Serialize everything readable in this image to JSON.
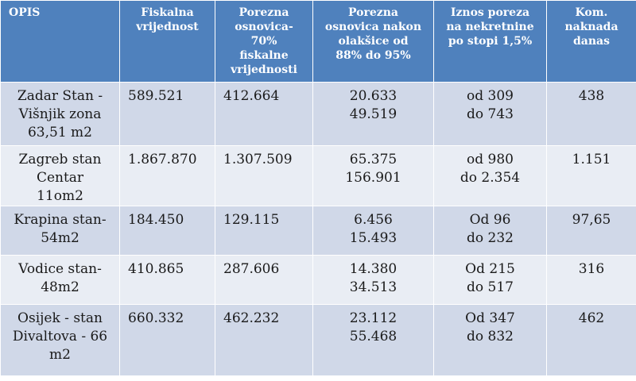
{
  "table": {
    "headers": [
      "OPIS",
      "Fiskalna vrijednost",
      "Porezna osnovica-70% fiskalne vrijednosti",
      "Porezna osnovica nakon olakšice od 88% do 95%",
      "Iznos poreza na nekretnine po stopi 1,5%",
      "Kom. naknada danas"
    ],
    "header_lines": [
      [
        "OPIS"
      ],
      [
        "Fiskalna",
        "vrijednost"
      ],
      [
        "Porezna",
        "osnovica-",
        "70%",
        "fiskalne",
        "vrijednosti"
      ],
      [
        "Porezna",
        "osnovica nakon",
        "olakšice od",
        "88% do 95%"
      ],
      [
        "Iznos  poreza",
        "na nekretnine",
        "po stopi 1,5%"
      ],
      [
        "Kom.",
        "naknada",
        "danas"
      ]
    ],
    "rows": [
      {
        "opis": [
          "Zadar Stan  -",
          "Višnjik  zona",
          "63,51 m2"
        ],
        "fiskalna": "589.521",
        "osnovica70": "412.664",
        "osnovica_olaksica": [
          "20.633",
          "49.519"
        ],
        "porez": [
          "od 309",
          "do 743"
        ],
        "naknada": "438"
      },
      {
        "opis": [
          "Zagreb stan",
          "Centar",
          "11om2"
        ],
        "fiskalna": "1.867.870",
        "osnovica70": "1.307.509",
        "osnovica_olaksica": [
          "65.375",
          "156.901"
        ],
        "porez": [
          "od 980",
          "do 2.354"
        ],
        "naknada": "1.151"
      },
      {
        "opis": [
          "Krapina stan-",
          "54m2"
        ],
        "fiskalna": "184.450",
        "osnovica70": "129.115",
        "osnovica_olaksica": [
          "6.456",
          "15.493"
        ],
        "porez": [
          "Od 96",
          "do 232"
        ],
        "naknada": "97,65"
      },
      {
        "opis": [
          "Vodice stan-",
          "48m2"
        ],
        "fiskalna": "410.865",
        "osnovica70": "287.606",
        "osnovica_olaksica": [
          "14.380",
          "34.513"
        ],
        "porez": [
          "Od 215",
          "do 517"
        ],
        "naknada": "316"
      },
      {
        "opis": [
          "Osijek - stan",
          "Divaltova - 66",
          "m2"
        ],
        "fiskalna": "660.332",
        "osnovica70": "462.232",
        "osnovica_olaksica": [
          "23.112",
          "55.468"
        ],
        "porez": [
          "Od 347",
          "do 832"
        ],
        "naknada": "462"
      }
    ]
  },
  "colors": {
    "header_bg": "#4f81bd",
    "row_odd_bg": "#d0d8e8",
    "row_even_bg": "#e9edf4"
  }
}
